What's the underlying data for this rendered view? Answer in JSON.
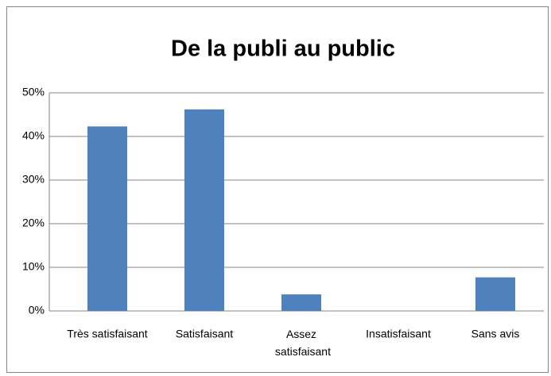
{
  "chart_data": {
    "type": "bar",
    "title": "De la publi au public",
    "categories": [
      "Très satisfaisant",
      "Satisfaisant",
      "Assez satisfaisant",
      "Insatisfaisant",
      "Sans avis"
    ],
    "values": [
      42.3,
      46.2,
      3.8,
      0,
      7.7
    ],
    "color": "#4f81bd",
    "ylim": [
      0,
      50
    ],
    "yticks": [
      {
        "value": 0,
        "label": "0%"
      },
      {
        "value": 10,
        "label": "10%"
      },
      {
        "value": 20,
        "label": "20%"
      },
      {
        "value": 30,
        "label": "30%"
      },
      {
        "value": 40,
        "label": "40%"
      },
      {
        "value": 50,
        "label": "50%"
      }
    ],
    "grid": true
  }
}
